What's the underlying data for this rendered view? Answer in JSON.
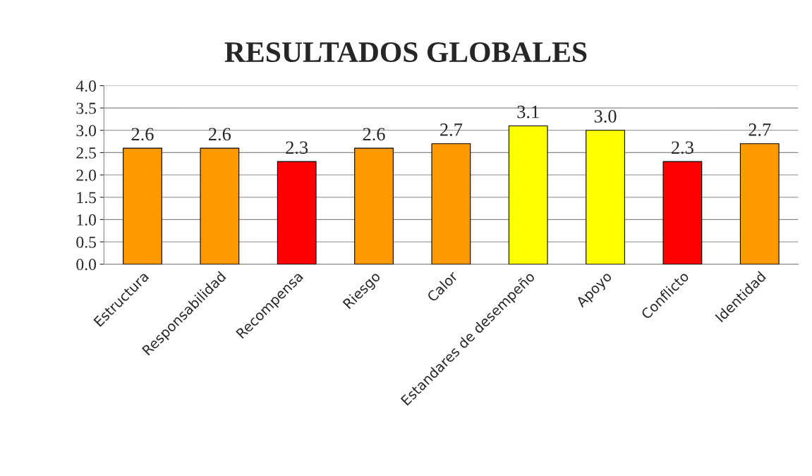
{
  "chart_data": {
    "type": "bar",
    "title": "RESULTADOS GLOBALES",
    "categories": [
      "Estructura",
      "Responsabilidad",
      "Recompensa",
      "Riesgo",
      "Calor",
      "Estandares de desempeño",
      "Apoyo",
      "Conflicto",
      "Identidad"
    ],
    "values": [
      2.6,
      2.6,
      2.3,
      2.6,
      2.7,
      3.1,
      3.0,
      2.3,
      2.7
    ],
    "colors": [
      "#ff9900",
      "#ff9900",
      "#ff0000",
      "#ff9900",
      "#ff9900",
      "#ffff00",
      "#ffff00",
      "#ff0000",
      "#ff9900"
    ],
    "value_labels": [
      "2.6",
      "2.6",
      "2.3",
      "2.6",
      "2.7",
      "3.1",
      "3.0",
      "2.3",
      "2.7"
    ],
    "ylim": [
      0,
      4
    ],
    "yticks": [
      {
        "value": 0,
        "label": "0.0"
      },
      {
        "value": 0.5,
        "label": "0.5"
      },
      {
        "value": 1,
        "label": "1.0"
      },
      {
        "value": 1.5,
        "label": "1.5"
      },
      {
        "value": 2,
        "label": "2.0"
      },
      {
        "value": 2.5,
        "label": "2.5"
      },
      {
        "value": 3,
        "label": "3.0"
      },
      {
        "value": 3.5,
        "label": "3.5"
      },
      {
        "value": 4,
        "label": "4.0"
      }
    ],
    "grid": "y"
  }
}
